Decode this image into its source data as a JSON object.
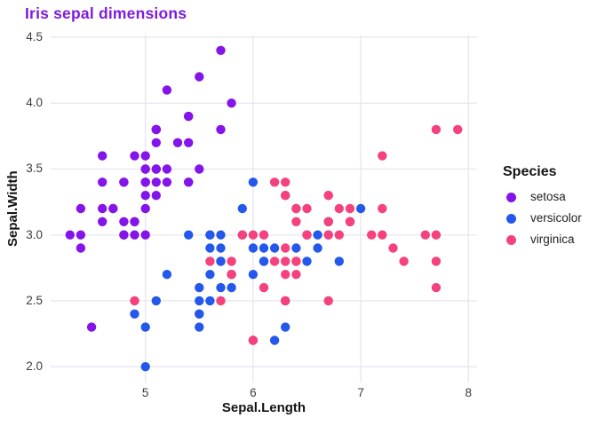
{
  "chart_data": {
    "type": "scatter",
    "title": "Iris sepal dimensions",
    "title_color": "#7E1CDE",
    "xlabel": "Sepal.Length",
    "ylabel": "Sepal.Width",
    "grid": true,
    "grid_color": "#E7E7F1",
    "background": "#ffffff",
    "xlim": [
      4.12,
      8.08
    ],
    "ylim": [
      1.88,
      4.52
    ],
    "x_ticks": [
      5,
      6,
      7,
      8
    ],
    "x_tick_labels": [
      "5",
      "6",
      "7",
      "8"
    ],
    "y_ticks": [
      2.0,
      2.5,
      3.0,
      3.5,
      4.0,
      4.5
    ],
    "y_tick_labels": [
      "2.0",
      "2.5",
      "3.0",
      "3.5",
      "4.0",
      "4.5"
    ],
    "legend": {
      "title": "Species",
      "position": "right"
    },
    "marker_radius": 5.2,
    "series": [
      {
        "name": "setosa",
        "color": "#8414EA",
        "points": [
          [
            5.1,
            3.5
          ],
          [
            4.9,
            3.0
          ],
          [
            4.7,
            3.2
          ],
          [
            4.6,
            3.1
          ],
          [
            5.0,
            3.6
          ],
          [
            5.4,
            3.9
          ],
          [
            4.6,
            3.4
          ],
          [
            5.0,
            3.4
          ],
          [
            4.4,
            2.9
          ],
          [
            4.9,
            3.1
          ],
          [
            5.4,
            3.7
          ],
          [
            4.8,
            3.4
          ],
          [
            4.8,
            3.0
          ],
          [
            4.3,
            3.0
          ],
          [
            5.8,
            4.0
          ],
          [
            5.7,
            4.4
          ],
          [
            5.4,
            3.9
          ],
          [
            5.1,
            3.5
          ],
          [
            5.7,
            3.8
          ],
          [
            5.1,
            3.8
          ],
          [
            5.4,
            3.4
          ],
          [
            5.1,
            3.7
          ],
          [
            4.6,
            3.6
          ],
          [
            5.1,
            3.3
          ],
          [
            4.8,
            3.4
          ],
          [
            5.0,
            3.0
          ],
          [
            5.0,
            3.4
          ],
          [
            5.2,
            3.5
          ],
          [
            5.2,
            3.4
          ],
          [
            4.7,
            3.2
          ],
          [
            4.8,
            3.1
          ],
          [
            5.4,
            3.4
          ],
          [
            5.2,
            4.1
          ],
          [
            5.5,
            4.2
          ],
          [
            4.9,
            3.1
          ],
          [
            5.0,
            3.2
          ],
          [
            5.5,
            3.5
          ],
          [
            4.9,
            3.6
          ],
          [
            4.4,
            3.0
          ],
          [
            5.1,
            3.4
          ],
          [
            5.0,
            3.5
          ],
          [
            4.5,
            2.3
          ],
          [
            4.4,
            3.2
          ],
          [
            5.0,
            3.5
          ],
          [
            5.1,
            3.8
          ],
          [
            4.8,
            3.0
          ],
          [
            5.1,
            3.8
          ],
          [
            4.6,
            3.2
          ],
          [
            5.3,
            3.7
          ],
          [
            5.0,
            3.3
          ]
        ]
      },
      {
        "name": "versicolor",
        "color": "#2458EB",
        "points": [
          [
            7.0,
            3.2
          ],
          [
            6.4,
            3.2
          ],
          [
            6.9,
            3.1
          ],
          [
            5.5,
            2.3
          ],
          [
            6.5,
            2.8
          ],
          [
            5.7,
            2.8
          ],
          [
            6.3,
            3.3
          ],
          [
            4.9,
            2.4
          ],
          [
            6.6,
            2.9
          ],
          [
            5.2,
            2.7
          ],
          [
            5.0,
            2.0
          ],
          [
            5.9,
            3.0
          ],
          [
            6.0,
            2.2
          ],
          [
            6.1,
            2.9
          ],
          [
            5.6,
            2.9
          ],
          [
            6.7,
            3.1
          ],
          [
            5.6,
            3.0
          ],
          [
            5.8,
            2.7
          ],
          [
            6.2,
            2.2
          ],
          [
            5.6,
            2.5
          ],
          [
            5.9,
            3.2
          ],
          [
            6.1,
            2.8
          ],
          [
            6.3,
            2.5
          ],
          [
            6.1,
            2.8
          ],
          [
            6.4,
            2.9
          ],
          [
            6.6,
            3.0
          ],
          [
            6.8,
            2.8
          ],
          [
            6.7,
            3.0
          ],
          [
            6.0,
            2.9
          ],
          [
            5.7,
            2.6
          ],
          [
            5.5,
            2.4
          ],
          [
            5.5,
            2.4
          ],
          [
            5.8,
            2.7
          ],
          [
            6.0,
            2.7
          ],
          [
            5.4,
            3.0
          ],
          [
            6.0,
            3.4
          ],
          [
            6.7,
            3.1
          ],
          [
            6.3,
            2.3
          ],
          [
            5.6,
            3.0
          ],
          [
            5.5,
            2.5
          ],
          [
            5.5,
            2.6
          ],
          [
            6.1,
            3.0
          ],
          [
            5.8,
            2.6
          ],
          [
            5.0,
            2.3
          ],
          [
            5.6,
            2.7
          ],
          [
            5.7,
            3.0
          ],
          [
            5.7,
            2.9
          ],
          [
            6.2,
            2.9
          ],
          [
            5.1,
            2.5
          ],
          [
            5.7,
            2.8
          ]
        ]
      },
      {
        "name": "virginica",
        "color": "#F5417E",
        "points": [
          [
            6.3,
            3.3
          ],
          [
            5.8,
            2.7
          ],
          [
            7.1,
            3.0
          ],
          [
            6.3,
            2.9
          ],
          [
            6.5,
            3.0
          ],
          [
            7.6,
            3.0
          ],
          [
            4.9,
            2.5
          ],
          [
            7.3,
            2.9
          ],
          [
            6.7,
            2.5
          ],
          [
            7.2,
            3.6
          ],
          [
            6.5,
            3.2
          ],
          [
            6.4,
            2.7
          ],
          [
            6.8,
            3.0
          ],
          [
            5.7,
            2.5
          ],
          [
            5.8,
            2.8
          ],
          [
            6.4,
            3.2
          ],
          [
            6.5,
            3.0
          ],
          [
            7.7,
            3.8
          ],
          [
            7.7,
            2.6
          ],
          [
            6.0,
            2.2
          ],
          [
            6.9,
            3.2
          ],
          [
            5.6,
            2.8
          ],
          [
            7.7,
            2.8
          ],
          [
            6.3,
            2.7
          ],
          [
            6.7,
            3.3
          ],
          [
            7.2,
            3.2
          ],
          [
            6.2,
            2.8
          ],
          [
            6.1,
            3.0
          ],
          [
            6.4,
            2.8
          ],
          [
            7.2,
            3.0
          ],
          [
            7.4,
            2.8
          ],
          [
            7.9,
            3.8
          ],
          [
            6.4,
            2.8
          ],
          [
            6.3,
            2.8
          ],
          [
            6.1,
            2.6
          ],
          [
            7.7,
            3.0
          ],
          [
            6.3,
            3.4
          ],
          [
            6.4,
            3.1
          ],
          [
            6.0,
            3.0
          ],
          [
            6.9,
            3.1
          ],
          [
            6.7,
            3.1
          ],
          [
            6.9,
            3.1
          ],
          [
            5.8,
            2.7
          ],
          [
            6.8,
            3.2
          ],
          [
            6.7,
            3.3
          ],
          [
            6.7,
            3.0
          ],
          [
            6.3,
            2.5
          ],
          [
            6.5,
            3.0
          ],
          [
            6.2,
            3.4
          ],
          [
            5.9,
            3.0
          ]
        ]
      }
    ]
  }
}
